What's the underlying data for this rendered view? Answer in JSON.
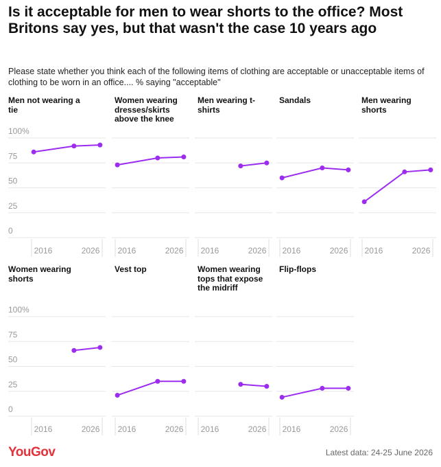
{
  "title": "Is it acceptable for men to wear shorts to the office? Most Britons say yes, but that wasn't the case 10 years ago",
  "subtitle": "Please state whether you think each of the following items of clothing are acceptable or unacceptable items of clothing to be worn in an office.... % saying \"acceptable\"",
  "logo": "YouGov",
  "source": "Latest data: 24-25 June 2026",
  "chart_data": [
    {
      "type": "line",
      "title": "Men not wearing a tie",
      "x": [
        2014,
        2022.5,
        2028
      ],
      "values": [
        86,
        92,
        93
      ],
      "color": "#9b2cf0",
      "xlim": [
        2013.4,
        2028.6
      ],
      "xticks": [
        2016,
        2026
      ],
      "ylim": [
        0,
        100
      ],
      "yticks": [
        0,
        25,
        50,
        75,
        {
          "value": 100,
          "label": "100%"
        }
      ],
      "grid": true
    },
    {
      "type": "line",
      "title": "Women wearing dresses/skirts above the knee",
      "x": [
        2014,
        2022.5,
        2028
      ],
      "values": [
        73,
        80,
        81
      ],
      "color": "#9b2cf0",
      "xlim": [
        2013.4,
        2028.6
      ],
      "xticks": [
        2016,
        2026
      ],
      "ylim": [
        0,
        100
      ],
      "yticks": [
        0,
        25,
        50,
        75,
        {
          "value": 100,
          "label": "100%"
        }
      ],
      "grid": true
    },
    {
      "type": "line",
      "title": "Men wearing t-shirts",
      "x": [
        2014,
        2022.5,
        2028
      ],
      "values": [
        null,
        72,
        75
      ],
      "color": "#9b2cf0",
      "xlim": [
        2013.4,
        2028.6
      ],
      "xticks": [
        2016,
        2026
      ],
      "ylim": [
        0,
        100
      ],
      "yticks": [
        0,
        25,
        50,
        75,
        {
          "value": 100,
          "label": "100%"
        }
      ],
      "grid": true
    },
    {
      "type": "line",
      "title": "Sandals",
      "x": [
        2014,
        2022.5,
        2028
      ],
      "values": [
        60,
        70,
        68
      ],
      "color": "#9b2cf0",
      "xlim": [
        2013.4,
        2028.6
      ],
      "xticks": [
        2016,
        2026
      ],
      "ylim": [
        0,
        100
      ],
      "yticks": [
        0,
        25,
        50,
        75,
        {
          "value": 100,
          "label": "100%"
        }
      ],
      "grid": true
    },
    {
      "type": "line",
      "title": "Men wearing shorts",
      "x": [
        2014,
        2022.5,
        2028
      ],
      "values": [
        36,
        66,
        68
      ],
      "color": "#9b2cf0",
      "xlim": [
        2013.4,
        2028.6
      ],
      "xticks": [
        2016,
        2026
      ],
      "ylim": [
        0,
        100
      ],
      "yticks": [
        0,
        25,
        50,
        75,
        {
          "value": 100,
          "label": "100%"
        }
      ],
      "grid": true
    },
    {
      "type": "line",
      "title": "Women wearing shorts",
      "x": [
        2014,
        2022.5,
        2028
      ],
      "values": [
        null,
        66,
        69
      ],
      "color": "#9b2cf0",
      "xlim": [
        2013.4,
        2028.6
      ],
      "xticks": [
        2016,
        2026
      ],
      "ylim": [
        0,
        100
      ],
      "yticks": [
        0,
        25,
        50,
        75,
        {
          "value": 100,
          "label": "100%"
        }
      ],
      "grid": true
    },
    {
      "type": "line",
      "title": "Vest top",
      "x": [
        2014,
        2022.5,
        2028
      ],
      "values": [
        21,
        35,
        35
      ],
      "color": "#9b2cf0",
      "xlim": [
        2013.4,
        2028.6
      ],
      "xticks": [
        2016,
        2026
      ],
      "ylim": [
        0,
        100
      ],
      "yticks": [
        0,
        25,
        50,
        75,
        {
          "value": 100,
          "label": "100%"
        }
      ],
      "grid": true
    },
    {
      "type": "line",
      "title": "Women wearing tops that expose the midriff",
      "x": [
        2014,
        2022.5,
        2028
      ],
      "values": [
        null,
        32,
        30
      ],
      "color": "#9b2cf0",
      "xlim": [
        2013.4,
        2028.6
      ],
      "xticks": [
        2016,
        2026
      ],
      "ylim": [
        0,
        100
      ],
      "yticks": [
        0,
        25,
        50,
        75,
        {
          "value": 100,
          "label": "100%"
        }
      ],
      "grid": true
    },
    {
      "type": "line",
      "title": "Flip-flops",
      "x": [
        2014,
        2022.5,
        2028
      ],
      "values": [
        19,
        28,
        28
      ],
      "color": "#9b2cf0",
      "xlim": [
        2013.4,
        2028.6
      ],
      "xticks": [
        2016,
        2026
      ],
      "ylim": [
        0,
        100
      ],
      "yticks": [
        0,
        25,
        50,
        75,
        {
          "value": 100,
          "label": "100%"
        }
      ],
      "grid": true
    }
  ]
}
